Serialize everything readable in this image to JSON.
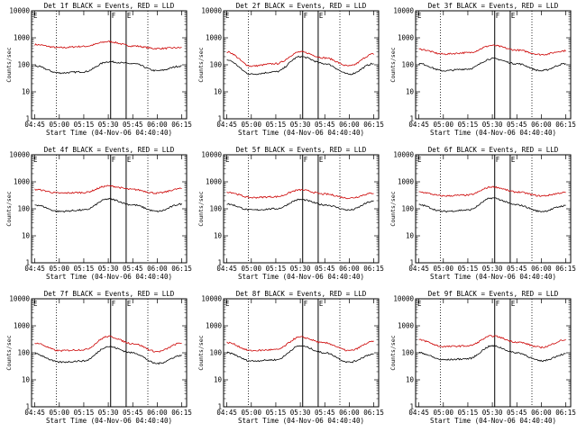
{
  "chart_data": [
    {
      "title": "Det 1f BLACK = Events, RED = LLD",
      "type": "line",
      "xlabel": "Start Time (04-Nov-06 04:40:40)",
      "ylabel": "Counts/sec",
      "yscale": "log",
      "ylim": [
        1,
        10000
      ],
      "yticks": [
        "1",
        "10",
        "100",
        "1000",
        "10000"
      ],
      "xticks": [
        "04:45",
        "05:00",
        "05:15",
        "05:30",
        "05:45",
        "06:00",
        "06:15"
      ],
      "x": [
        "04:45",
        "05:00",
        "05:15",
        "05:30",
        "05:45",
        "06:00",
        "06:15"
      ],
      "series": [
        {
          "color": "#cc0000",
          "values": [
            560,
            430,
            480,
            720,
            500,
            400,
            430
          ]
        },
        {
          "color": "#000000",
          "values": [
            90,
            50,
            55,
            130,
            110,
            60,
            90
          ]
        }
      ],
      "markers": [
        "F",
        "E"
      ]
    },
    {
      "title": "Det 2f BLACK = Events, RED = LLD",
      "type": "line",
      "xlabel": "Start Time (04-Nov-06 04:40:40)",
      "ylabel": "Counts/sec",
      "yscale": "log",
      "ylim": [
        1,
        10000
      ],
      "yticks": [
        "1",
        "10",
        "100",
        "1000",
        "10000"
      ],
      "xticks": [
        "04:45",
        "05:00",
        "05:15",
        "05:30",
        "05:45",
        "06:00",
        "06:15"
      ],
      "x": [
        "04:45",
        "05:00",
        "05:15",
        "05:30",
        "05:45",
        "06:00",
        "06:15"
      ],
      "series": [
        {
          "color": "#cc0000",
          "values": [
            300,
            90,
            110,
            300,
            180,
            90,
            250
          ]
        },
        {
          "color": "#000000",
          "values": [
            150,
            45,
            55,
            200,
            110,
            45,
            110
          ]
        }
      ],
      "markers": [
        "F",
        "E"
      ]
    },
    {
      "title": "Det 3f BLACK = Events, RED = LLD",
      "type": "line",
      "xlabel": "Start Time (04-Nov-06 04:40:40)",
      "ylabel": "Counts/sec",
      "yscale": "log",
      "ylim": [
        1,
        10000
      ],
      "yticks": [
        "1",
        "10",
        "100",
        "1000",
        "10000"
      ],
      "xticks": [
        "04:45",
        "05:00",
        "05:15",
        "05:30",
        "05:45",
        "06:00",
        "06:15"
      ],
      "x": [
        "04:45",
        "05:00",
        "05:15",
        "05:30",
        "05:45",
        "06:00",
        "06:15"
      ],
      "series": [
        {
          "color": "#cc0000",
          "values": [
            380,
            250,
            280,
            520,
            350,
            240,
            330
          ]
        },
        {
          "color": "#000000",
          "values": [
            110,
            60,
            70,
            170,
            110,
            60,
            110
          ]
        }
      ],
      "markers": [
        "F",
        "E"
      ]
    },
    {
      "title": "Det 4f BLACK = Events, RED = LLD",
      "type": "line",
      "xlabel": "Start Time (04-Nov-06 04:40:40)",
      "ylabel": "Counts/sec",
      "yscale": "log",
      "ylim": [
        1,
        10000
      ],
      "yticks": [
        "1",
        "10",
        "100",
        "1000",
        "10000"
      ],
      "xticks": [
        "04:45",
        "05:00",
        "05:15",
        "05:30",
        "05:45",
        "06:00",
        "06:15"
      ],
      "x": [
        "04:45",
        "05:00",
        "05:15",
        "05:30",
        "05:45",
        "06:00",
        "06:15"
      ],
      "series": [
        {
          "color": "#cc0000",
          "values": [
            520,
            380,
            400,
            700,
            520,
            380,
            560
          ]
        },
        {
          "color": "#000000",
          "values": [
            140,
            80,
            90,
            230,
            140,
            80,
            150
          ]
        }
      ],
      "markers": [
        "F",
        "E"
      ]
    },
    {
      "title": "Det 5f BLACK = Events, RED = LLD",
      "type": "line",
      "xlabel": "Start Time (04-Nov-06 04:40:40)",
      "ylabel": "Counts/sec",
      "yscale": "log",
      "ylim": [
        1,
        10000
      ],
      "yticks": [
        "1",
        "10",
        "100",
        "1000",
        "10000"
      ],
      "xticks": [
        "04:45",
        "05:00",
        "05:15",
        "05:30",
        "05:45",
        "06:00",
        "06:15"
      ],
      "x": [
        "04:45",
        "05:00",
        "05:15",
        "05:30",
        "05:45",
        "06:00",
        "06:15"
      ],
      "series": [
        {
          "color": "#cc0000",
          "values": [
            420,
            260,
            280,
            500,
            350,
            250,
            380
          ]
        },
        {
          "color": "#000000",
          "values": [
            150,
            90,
            100,
            220,
            140,
            90,
            190
          ]
        }
      ],
      "markers": [
        "F",
        "E"
      ]
    },
    {
      "title": "Det 6f BLACK = Events, RED = LLD",
      "type": "line",
      "xlabel": "Start Time (04-Nov-06 04:40:40)",
      "ylabel": "Counts/sec",
      "yscale": "log",
      "ylim": [
        1,
        10000
      ],
      "yticks": [
        "1",
        "10",
        "100",
        "1000",
        "10000"
      ],
      "xticks": [
        "04:45",
        "05:00",
        "05:15",
        "05:30",
        "05:45",
        "06:00",
        "06:15"
      ],
      "x": [
        "04:45",
        "05:00",
        "05:15",
        "05:30",
        "05:45",
        "06:00",
        "06:15"
      ],
      "series": [
        {
          "color": "#cc0000",
          "values": [
            420,
            300,
            320,
            650,
            420,
            300,
            400
          ]
        },
        {
          "color": "#000000",
          "values": [
            140,
            80,
            90,
            250,
            140,
            80,
            130
          ]
        }
      ],
      "markers": [
        "F",
        "E"
      ]
    },
    {
      "title": "Det 7f BLACK = Events, RED = LLD",
      "type": "line",
      "xlabel": "Start Time (04-Nov-06 04:40:40)",
      "ylabel": "Counts/sec",
      "yscale": "log",
      "ylim": [
        1,
        10000
      ],
      "yticks": [
        "1",
        "10",
        "100",
        "1000",
        "10000"
      ],
      "xticks": [
        "04:45",
        "05:00",
        "05:15",
        "05:30",
        "05:45",
        "06:00",
        "06:15"
      ],
      "x": [
        "04:45",
        "05:00",
        "05:15",
        "05:30",
        "05:45",
        "06:00",
        "06:15"
      ],
      "series": [
        {
          "color": "#cc0000",
          "values": [
            230,
            120,
            130,
            400,
            220,
            110,
            230
          ]
        },
        {
          "color": "#000000",
          "values": [
            90,
            45,
            50,
            170,
            100,
            40,
            80
          ]
        }
      ],
      "markers": [
        "F",
        "E"
      ]
    },
    {
      "title": "Det 8f BLACK = Events, RED = LLD",
      "type": "line",
      "xlabel": "Start Time (04-Nov-06 04:40:40)",
      "ylabel": "Counts/sec",
      "yscale": "log",
      "ylim": [
        1,
        10000
      ],
      "yticks": [
        "1",
        "10",
        "100",
        "1000",
        "10000"
      ],
      "xticks": [
        "04:45",
        "05:00",
        "05:15",
        "05:30",
        "05:45",
        "06:00",
        "06:15"
      ],
      "x": [
        "04:45",
        "05:00",
        "05:15",
        "05:30",
        "05:45",
        "06:00",
        "06:15"
      ],
      "series": [
        {
          "color": "#cc0000",
          "values": [
            240,
            120,
            130,
            380,
            230,
            120,
            260
          ]
        },
        {
          "color": "#000000",
          "values": [
            100,
            50,
            55,
            180,
            100,
            45,
            90
          ]
        }
      ],
      "markers": [
        "F",
        "E"
      ]
    },
    {
      "title": "Det 9f BLACK = Events, RED = LLD",
      "type": "line",
      "xlabel": "Start Time (04-Nov-06 04:40:40)",
      "ylabel": "Counts/sec",
      "yscale": "log",
      "ylim": [
        1,
        10000
      ],
      "yticks": [
        "1",
        "10",
        "100",
        "1000",
        "10000"
      ],
      "xticks": [
        "04:45",
        "05:00",
        "05:15",
        "05:30",
        "05:45",
        "06:00",
        "06:15"
      ],
      "x": [
        "04:45",
        "05:00",
        "05:15",
        "05:30",
        "05:45",
        "06:00",
        "06:15"
      ],
      "series": [
        {
          "color": "#cc0000",
          "values": [
            300,
            170,
            180,
            420,
            250,
            160,
            300
          ]
        },
        {
          "color": "#000000",
          "values": [
            100,
            55,
            60,
            180,
            100,
            50,
            90
          ]
        }
      ],
      "markers": [
        "F",
        "E"
      ]
    }
  ]
}
